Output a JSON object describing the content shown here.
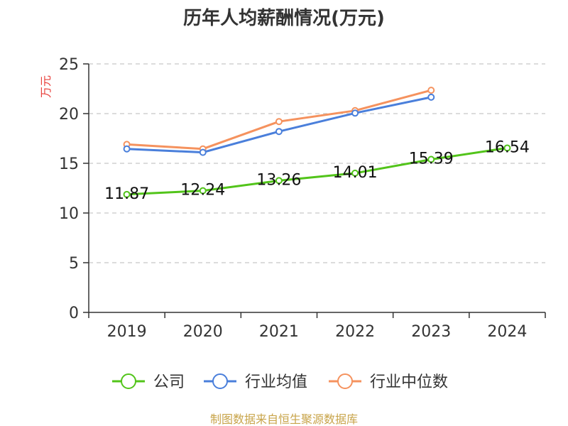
{
  "chart_data": {
    "type": "line",
    "title": "历年人均薪酬情况(万元)",
    "ylabel": "万元",
    "xlabel": "",
    "categories": [
      "2019",
      "2020",
      "2021",
      "2022",
      "2023",
      "2024"
    ],
    "ylim": [
      0,
      25
    ],
    "yticks": [
      0,
      5,
      10,
      15,
      20,
      25
    ],
    "grid": true,
    "legend_position": "bottom",
    "series": [
      {
        "name": "公司",
        "color": "#52c41a",
        "values": [
          11.87,
          12.24,
          13.26,
          14.01,
          15.39,
          16.54
        ],
        "labels": [
          "11.87",
          "12.24",
          "13.26",
          "14.01",
          "15.39",
          "16.54"
        ]
      },
      {
        "name": "行业均值",
        "color": "#4a7fdb",
        "values": [
          16.45,
          16.1,
          18.2,
          20.05,
          21.65,
          null
        ]
      },
      {
        "name": "行业中位数",
        "color": "#f5925e",
        "values": [
          16.9,
          16.45,
          19.2,
          20.3,
          22.35,
          null
        ]
      }
    ]
  },
  "footer": "制图数据来自恒生聚源数据库"
}
